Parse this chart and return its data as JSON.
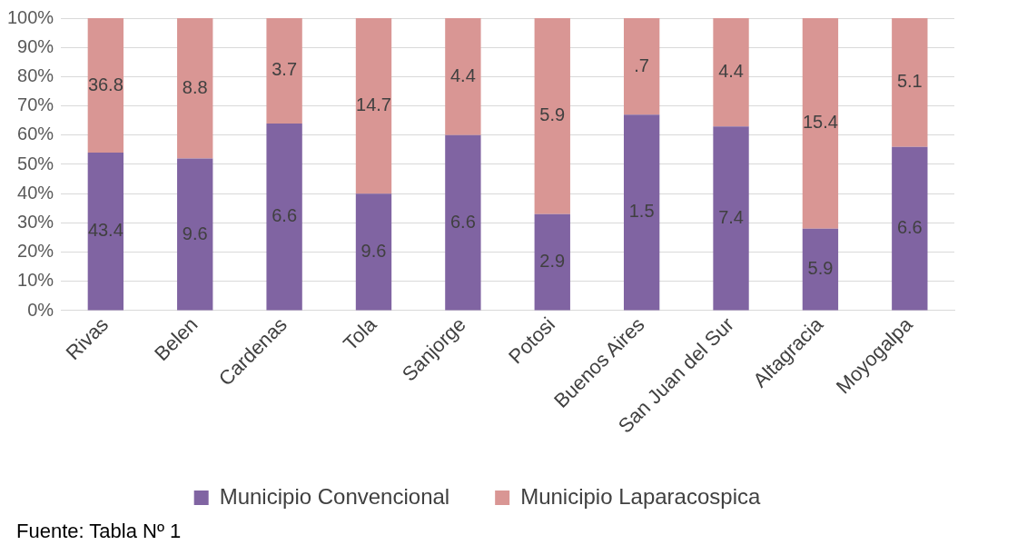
{
  "chart_data": {
    "type": "bar",
    "stacked": true,
    "categories": [
      "Rivas",
      "Belen",
      "Cardenas",
      "Tola",
      "Sanjorge",
      "Potosi",
      "Buenos Aires",
      "San Juan del Sur",
      "Altagracia",
      "Moyogalpa"
    ],
    "series": [
      {
        "name": "Municipio Convencional",
        "color": "#8064a2",
        "values": [
          54,
          52,
          64,
          40,
          60,
          33,
          67,
          63,
          28,
          56
        ]
      },
      {
        "name": "Municipio Laparacospica",
        "color": "#d99694",
        "values": [
          46,
          48,
          36,
          60,
          40,
          67,
          33,
          37,
          72,
          44
        ]
      }
    ],
    "ylim": [
      0,
      100
    ],
    "yticks": [
      {
        "value": 0,
        "label": "0%"
      },
      {
        "value": 10,
        "label": "10%"
      },
      {
        "value": 20,
        "label": "20%"
      },
      {
        "value": 30,
        "label": "30%"
      },
      {
        "value": 40,
        "label": "40%"
      },
      {
        "value": 50,
        "label": "50%"
      },
      {
        "value": 60,
        "label": "60%"
      },
      {
        "value": 70,
        "label": "70%"
      },
      {
        "value": 80,
        "label": "80%"
      },
      {
        "value": 90,
        "label": "90%"
      },
      {
        "value": 100,
        "label": "100%"
      }
    ],
    "grid": "y",
    "legend": "bottom",
    "annotations": [
      "43.4",
      "36.8",
      "9.6",
      "8.8",
      "6.6",
      "3.7",
      "9.6",
      "14.7",
      "6.6",
      "4.4",
      "2.9",
      "5.9",
      "1.5",
      ".7",
      "7.4",
      "4.4",
      "5.9",
      "15.4",
      "6.6",
      "5.1",
      "Fuente: Tabla Nº 1"
    ]
  }
}
